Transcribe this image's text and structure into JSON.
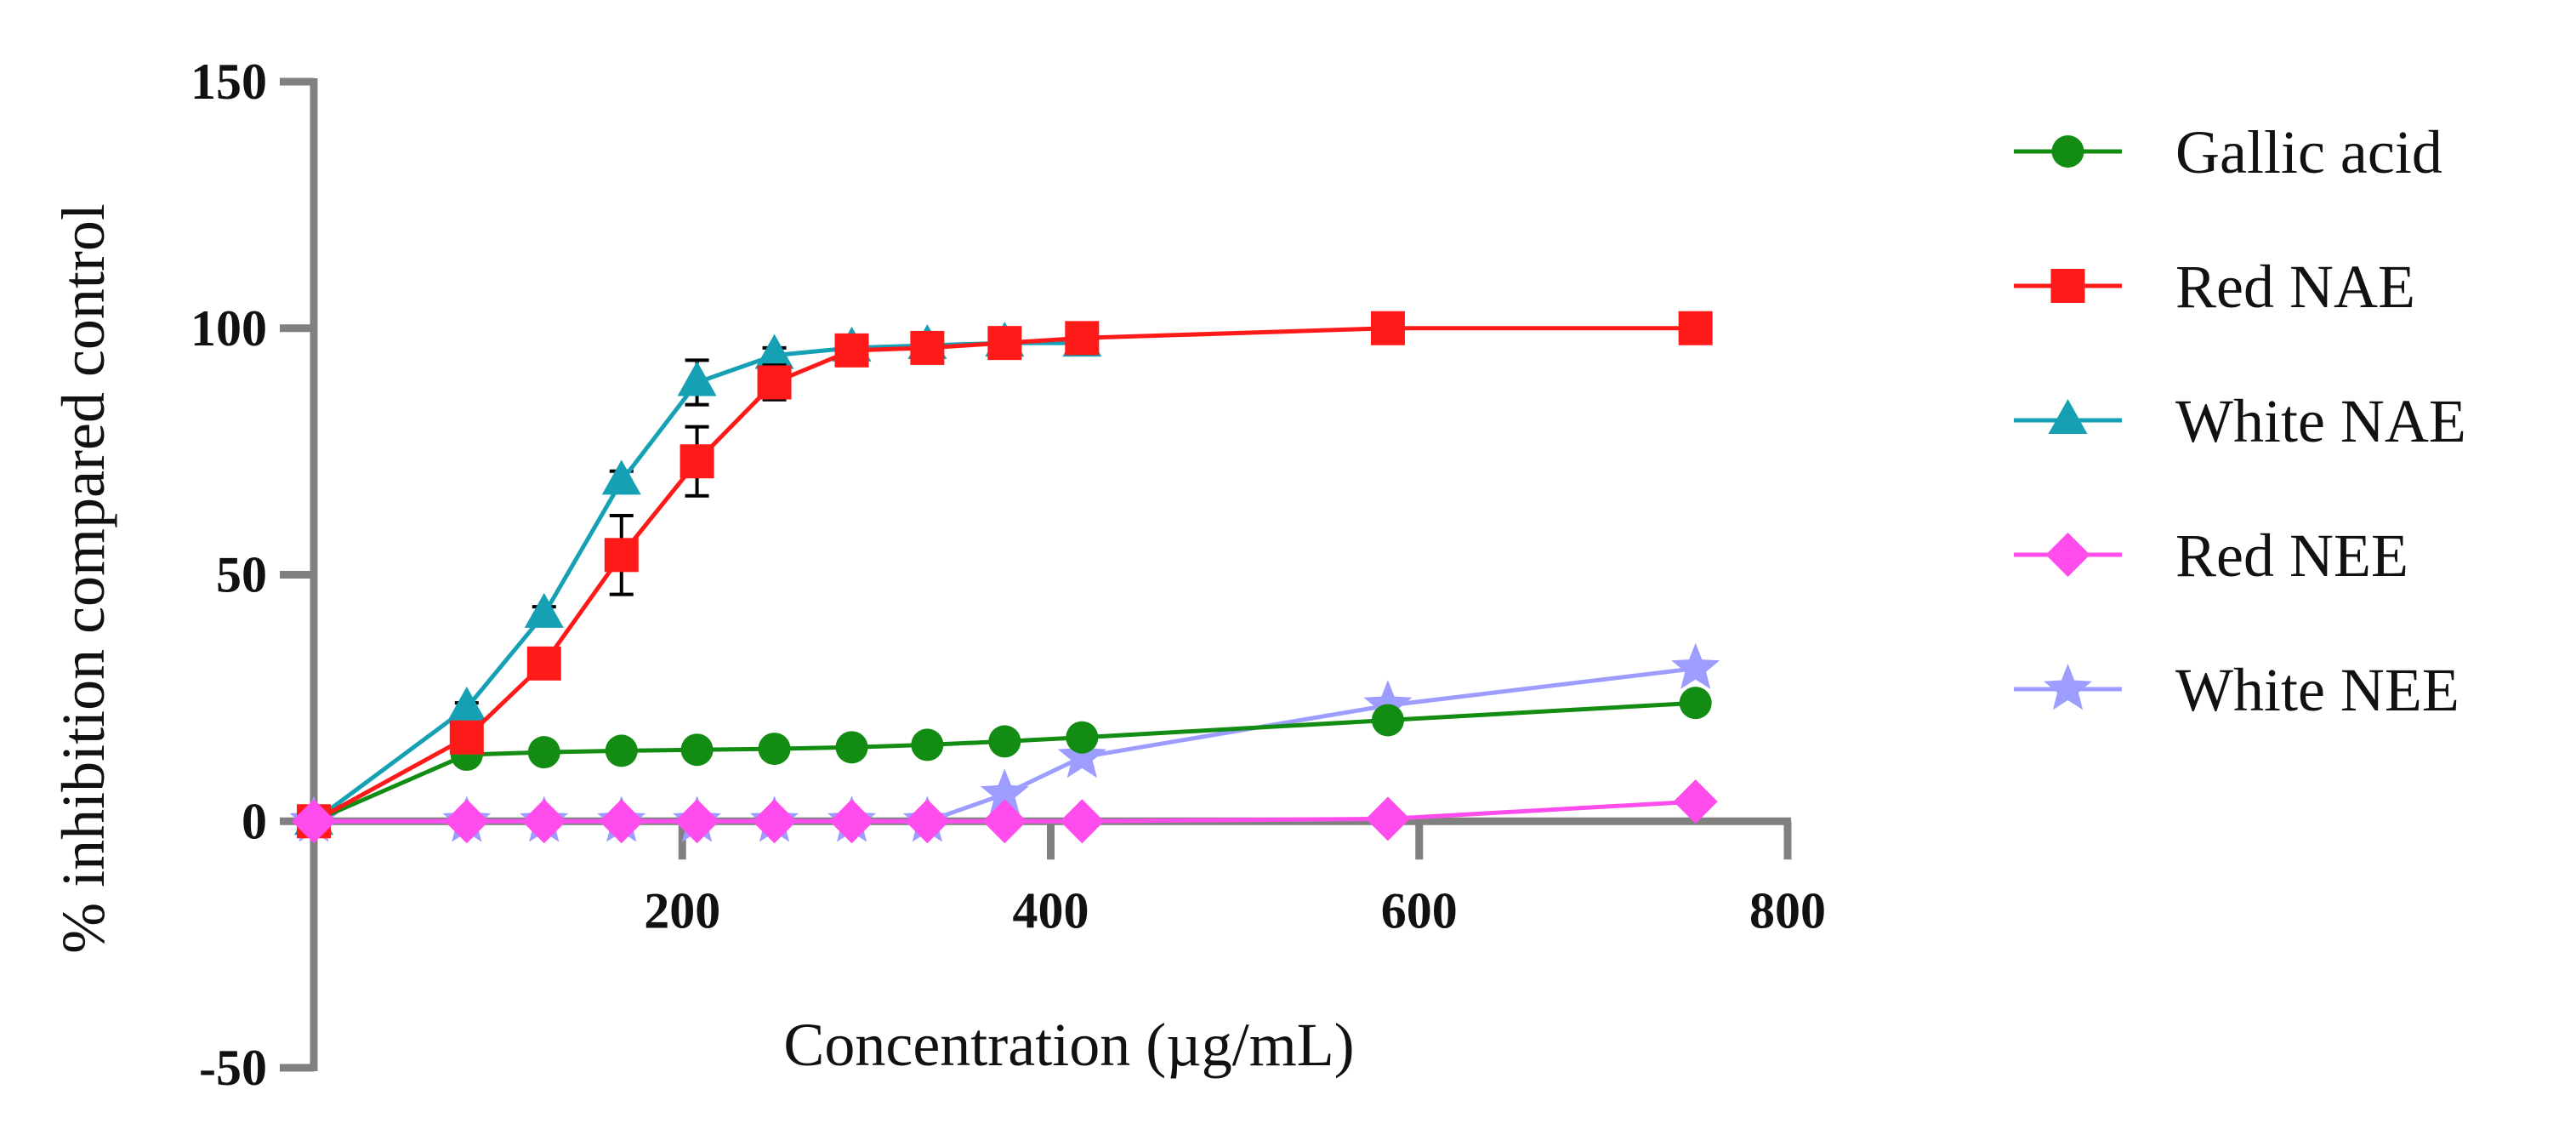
{
  "chart_data": {
    "type": "line",
    "title": "",
    "xlabel": "Concentration (µg/mL)",
    "ylabel": "% inhibition compared control",
    "xlim": [
      0,
      800
    ],
    "ylim": [
      -50,
      150
    ],
    "xticks": [
      200,
      400,
      600,
      800
    ],
    "yticks": [
      -50,
      0,
      50,
      100,
      150
    ],
    "grid": false,
    "legend_position": "right",
    "x": [
      0,
      83,
      125,
      167,
      208,
      250,
      292,
      333,
      375,
      417,
      583,
      750
    ],
    "series": [
      {
        "name": "Gallic acid",
        "color": "#128c12",
        "marker": "circle",
        "values": [
          0,
          13.5,
          14,
          14.3,
          14.5,
          14.7,
          15,
          15.5,
          16.2,
          17,
          20.5,
          24
        ]
      },
      {
        "name": "Red NAE",
        "color": "#ff1a1a",
        "marker": "square",
        "values": [
          0,
          17,
          32,
          54,
          73,
          89,
          95.5,
          96,
          97,
          98,
          100,
          100
        ],
        "errors": [
          0,
          1.5,
          2,
          8,
          7,
          3.5,
          1.5,
          1.5,
          1.2,
          1,
          0.5,
          0.5
        ]
      },
      {
        "name": "White NAE",
        "color": "#16a0b4",
        "marker": "triangle",
        "values": [
          0,
          23,
          42,
          69,
          89,
          94.5,
          96,
          96.5,
          97,
          97,
          null,
          null
        ],
        "errors": [
          0,
          1,
          1.5,
          2,
          4.5,
          1.5,
          1,
          1,
          1,
          1,
          0,
          0
        ]
      },
      {
        "name": "Red NEE",
        "color": "#ff4ded",
        "marker": "diamond",
        "values": [
          0,
          0,
          0,
          0,
          0,
          0,
          0,
          0,
          0,
          0,
          0.5,
          4
        ]
      },
      {
        "name": "White NEE",
        "color": "#9d9dff",
        "marker": "star",
        "values": [
          0,
          0,
          0,
          0,
          0,
          0,
          0,
          0,
          5.5,
          13,
          23.5,
          31
        ]
      }
    ]
  }
}
